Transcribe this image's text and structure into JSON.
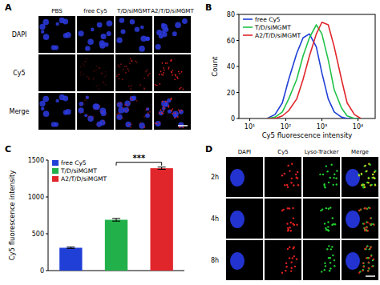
{
  "chart_data": [
    {
      "type": "line",
      "title": "B",
      "x_label": "Cy5 fluorescence intensity",
      "y_label": "Count",
      "log": "x",
      "x": [
        30,
        50,
        80,
        120,
        200,
        300,
        450,
        700,
        1000,
        1500,
        2200,
        3500,
        5000,
        8000,
        12000
      ],
      "series": [
        {
          "name": "free Cy5",
          "color": "#1f3fd6",
          "values": [
            0,
            3,
            12,
            30,
            50,
            62,
            65,
            55,
            35,
            15,
            5,
            1,
            0,
            0,
            0
          ]
        },
        {
          "name": "T/D/siMGMT",
          "color": "#22c24a",
          "values": [
            0,
            1,
            5,
            15,
            30,
            48,
            62,
            72,
            65,
            45,
            22,
            8,
            2,
            0,
            0
          ]
        },
        {
          "name": "A2/T/D/siMGMT",
          "color": "#e0262b",
          "values": [
            0,
            0,
            2,
            6,
            15,
            30,
            48,
            65,
            74,
            72,
            55,
            30,
            12,
            3,
            0
          ]
        }
      ],
      "xlim": [
        5,
        30000
      ],
      "xticks": [
        {
          "value": 10,
          "label": "10¹"
        },
        {
          "value": 100,
          "label": "10²"
        },
        {
          "value": 1000,
          "label": "10³"
        },
        {
          "value": 10000,
          "label": "10⁴"
        }
      ],
      "ylim": [
        0,
        80
      ],
      "yticks": [
        0,
        20,
        40,
        60,
        80
      ],
      "legend": "upper left"
    },
    {
      "type": "bar",
      "title": "C",
      "y_label": "Cy5 fluorescence intensity",
      "categories": [
        null
      ],
      "series": [
        {
          "name": "free Cy5",
          "color": "#1f3fd6",
          "values": [
            310
          ],
          "errors": [
            10
          ]
        },
        {
          "name": "T/D/siMGMT",
          "color": "#22b04a",
          "values": [
            690
          ],
          "errors": [
            18
          ]
        },
        {
          "name": "A2/T/D/siMGMT",
          "color": "#e0262b",
          "values": [
            1390
          ],
          "errors": [
            15
          ]
        }
      ],
      "ylim": [
        0,
        1500
      ],
      "yticks": [
        0,
        500,
        1000,
        1500
      ],
      "legend": "upper left",
      "annotations": [
        "***"
      ]
    }
  ],
  "micrograph_panels": [
    {
      "title": "A",
      "columns": [
        "PBS",
        "free Cy5",
        "T/D/siMGMT",
        "A2/T/D/siMGMT"
      ],
      "rows": [
        "DAPI",
        "Cy5",
        "Merge"
      ]
    },
    {
      "title": "D",
      "columns": [
        "DAPI",
        "Cy5",
        "Lyso-Tracker",
        "Merge"
      ],
      "rows": [
        "2h",
        "4h",
        "8h"
      ]
    }
  ]
}
